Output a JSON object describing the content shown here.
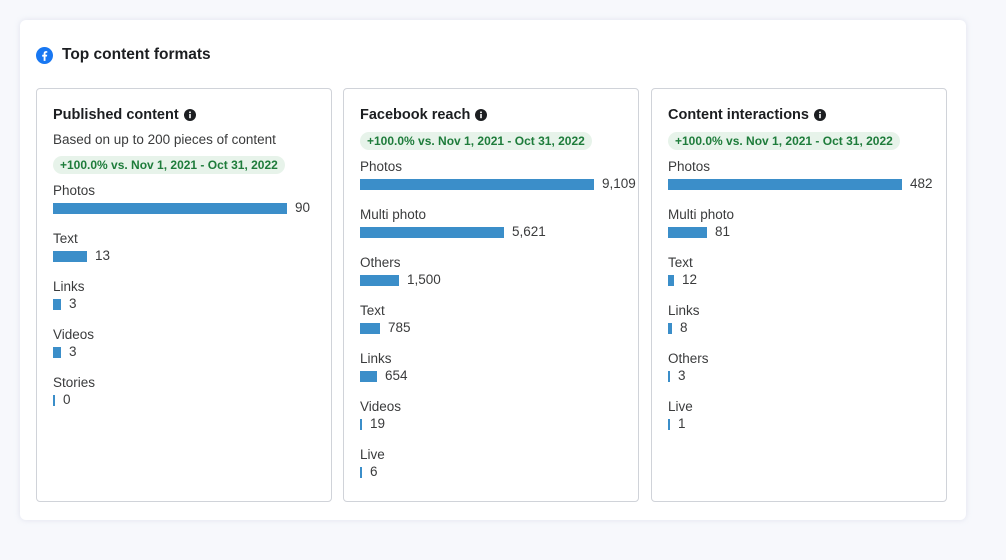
{
  "header": {
    "title": "Top content formats",
    "icon": "facebook-icon",
    "brand_color": "#1877f2"
  },
  "bar_color": "#3b8ec9",
  "panels": [
    {
      "title": "Published content",
      "subtitle": "Based on up to 200 pieces of content",
      "badge": "+100.0% vs. Nov 1, 2021 - Oct 31, 2022",
      "max": 90,
      "rows": [
        {
          "label": "Photos",
          "value": 90,
          "display": "90"
        },
        {
          "label": "Text",
          "value": 13,
          "display": "13"
        },
        {
          "label": "Links",
          "value": 3,
          "display": "3"
        },
        {
          "label": "Videos",
          "value": 3,
          "display": "3"
        },
        {
          "label": "Stories",
          "value": 0,
          "display": "0"
        }
      ]
    },
    {
      "title": "Facebook reach",
      "badge": "+100.0% vs. Nov 1, 2021 - Oct 31, 2022",
      "max": 9109,
      "rows": [
        {
          "label": "Photos",
          "value": 9109,
          "display": "9,109"
        },
        {
          "label": "Multi photo",
          "value": 5621,
          "display": "5,621"
        },
        {
          "label": "Others",
          "value": 1500,
          "display": "1,500"
        },
        {
          "label": "Text",
          "value": 785,
          "display": "785"
        },
        {
          "label": "Links",
          "value": 654,
          "display": "654"
        },
        {
          "label": "Videos",
          "value": 19,
          "display": "19"
        },
        {
          "label": "Live",
          "value": 6,
          "display": "6"
        }
      ]
    },
    {
      "title": "Content interactions",
      "badge": "+100.0% vs. Nov 1, 2021 - Oct 31, 2022",
      "max": 482,
      "rows": [
        {
          "label": "Photos",
          "value": 482,
          "display": "482"
        },
        {
          "label": "Multi photo",
          "value": 81,
          "display": "81"
        },
        {
          "label": "Text",
          "value": 12,
          "display": "12"
        },
        {
          "label": "Links",
          "value": 8,
          "display": "8"
        },
        {
          "label": "Others",
          "value": 3,
          "display": "3"
        },
        {
          "label": "Live",
          "value": 1,
          "display": "1"
        }
      ]
    }
  ]
}
